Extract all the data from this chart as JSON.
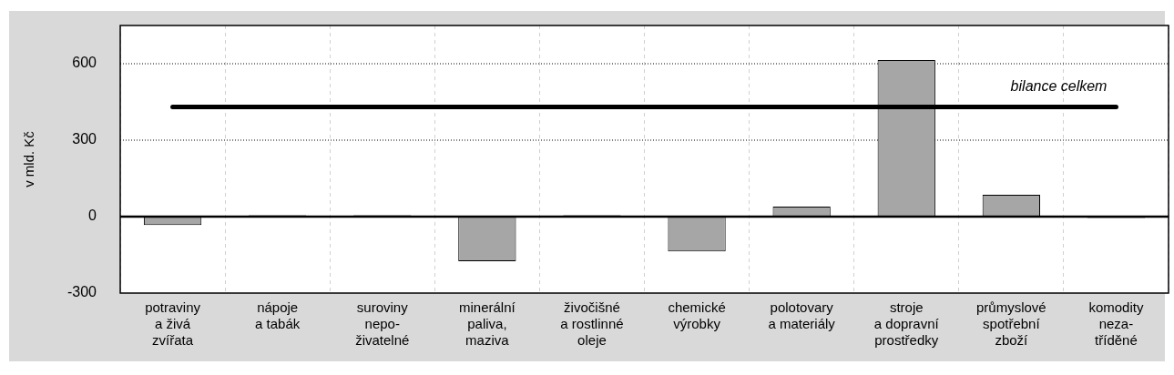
{
  "chart_data": {
    "type": "bar",
    "ylabel": "v mld. Kč",
    "categories": [
      "potraviny\na živá\nzvířata",
      "nápoje\na tabák",
      "suroviny\nnepo-\nživatelné",
      "minerální\npaliva,\nmaziva",
      "živočišné\na rostlinné\noleje",
      "chemické\nvýrobky",
      "polotovary\na materiály",
      "stroje\na dopravní\nprostředky",
      "průmyslové\nspotřební\nzboží",
      "komodity\nneza-\ntříděné"
    ],
    "values": [
      -33,
      5,
      5,
      -175,
      5,
      -137,
      39,
      614,
      86,
      -5
    ],
    "color": "#a6a6a6",
    "ylim": [
      -300,
      750
    ],
    "yticks": [
      -300,
      0,
      300,
      600
    ],
    "grid": true,
    "ref_lines": [
      {
        "axis": "y",
        "value": 430,
        "label": "bilance celkem",
        "color": "#000000"
      }
    ]
  }
}
